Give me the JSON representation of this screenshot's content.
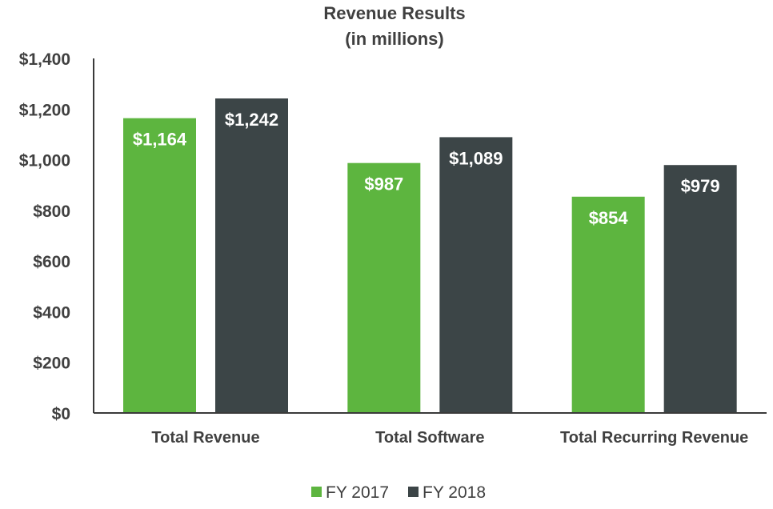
{
  "chart_data": {
    "type": "bar",
    "title": "Revenue Results",
    "subtitle": "(in millions)",
    "categories": [
      "Total Revenue",
      "Total Software",
      "Total Recurring Revenue"
    ],
    "series": [
      {
        "name": "FY 2017",
        "color": "#5db53f",
        "values": [
          1164,
          987,
          854
        ],
        "labels": [
          "$1,164",
          "$987",
          "$854"
        ]
      },
      {
        "name": "FY 2018",
        "color": "#3c4547",
        "values": [
          1242,
          1089,
          979
        ],
        "labels": [
          "$1,242",
          "$1,089",
          "$979"
        ]
      }
    ],
    "ylim": [
      0,
      1400
    ],
    "yticks": [
      0,
      200,
      400,
      600,
      800,
      1000,
      1200,
      1400
    ],
    "ytick_labels": [
      "$0",
      "$200",
      "$400",
      "$600",
      "$800",
      "$1,000",
      "$1,200",
      "$1,400"
    ],
    "xlabel": "",
    "ylabel": "",
    "grid": false,
    "legend_position": "bottom"
  }
}
